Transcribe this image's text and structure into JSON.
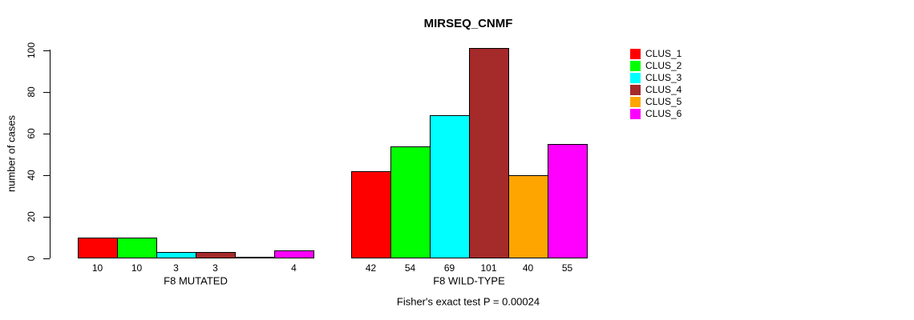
{
  "chart_data": {
    "type": "bar",
    "title": "MIRSEQ_CNMF",
    "ylabel": "number of cases",
    "xlabel": "",
    "ylim": [
      0,
      100
    ],
    "yticks": [
      0,
      20,
      40,
      60,
      80,
      100
    ],
    "grid": false,
    "legend_position": "right",
    "legend": [
      {
        "label": "CLUS_1",
        "color": "#FF0000"
      },
      {
        "label": "CLUS_2",
        "color": "#00FF00"
      },
      {
        "label": "CLUS_3",
        "color": "#00FFFF"
      },
      {
        "label": "CLUS_4",
        "color": "#A52A2A"
      },
      {
        "label": "CLUS_5",
        "color": "#FFA500"
      },
      {
        "label": "CLUS_6",
        "color": "#FF00FF"
      }
    ],
    "groups": [
      {
        "label": "F8 MUTATED",
        "values": [
          10,
          10,
          3,
          3,
          0,
          4
        ],
        "bar_labels": [
          "10",
          "10",
          "3",
          "3",
          "",
          "4"
        ]
      },
      {
        "label": "F8 WILD-TYPE",
        "values": [
          42,
          54,
          69,
          101,
          40,
          55
        ],
        "bar_labels": [
          "42",
          "54",
          "69",
          "101",
          "40",
          "55"
        ]
      }
    ],
    "caption": "Fisher's exact test P = 0.00024",
    "bar_border_color": "#000000"
  }
}
